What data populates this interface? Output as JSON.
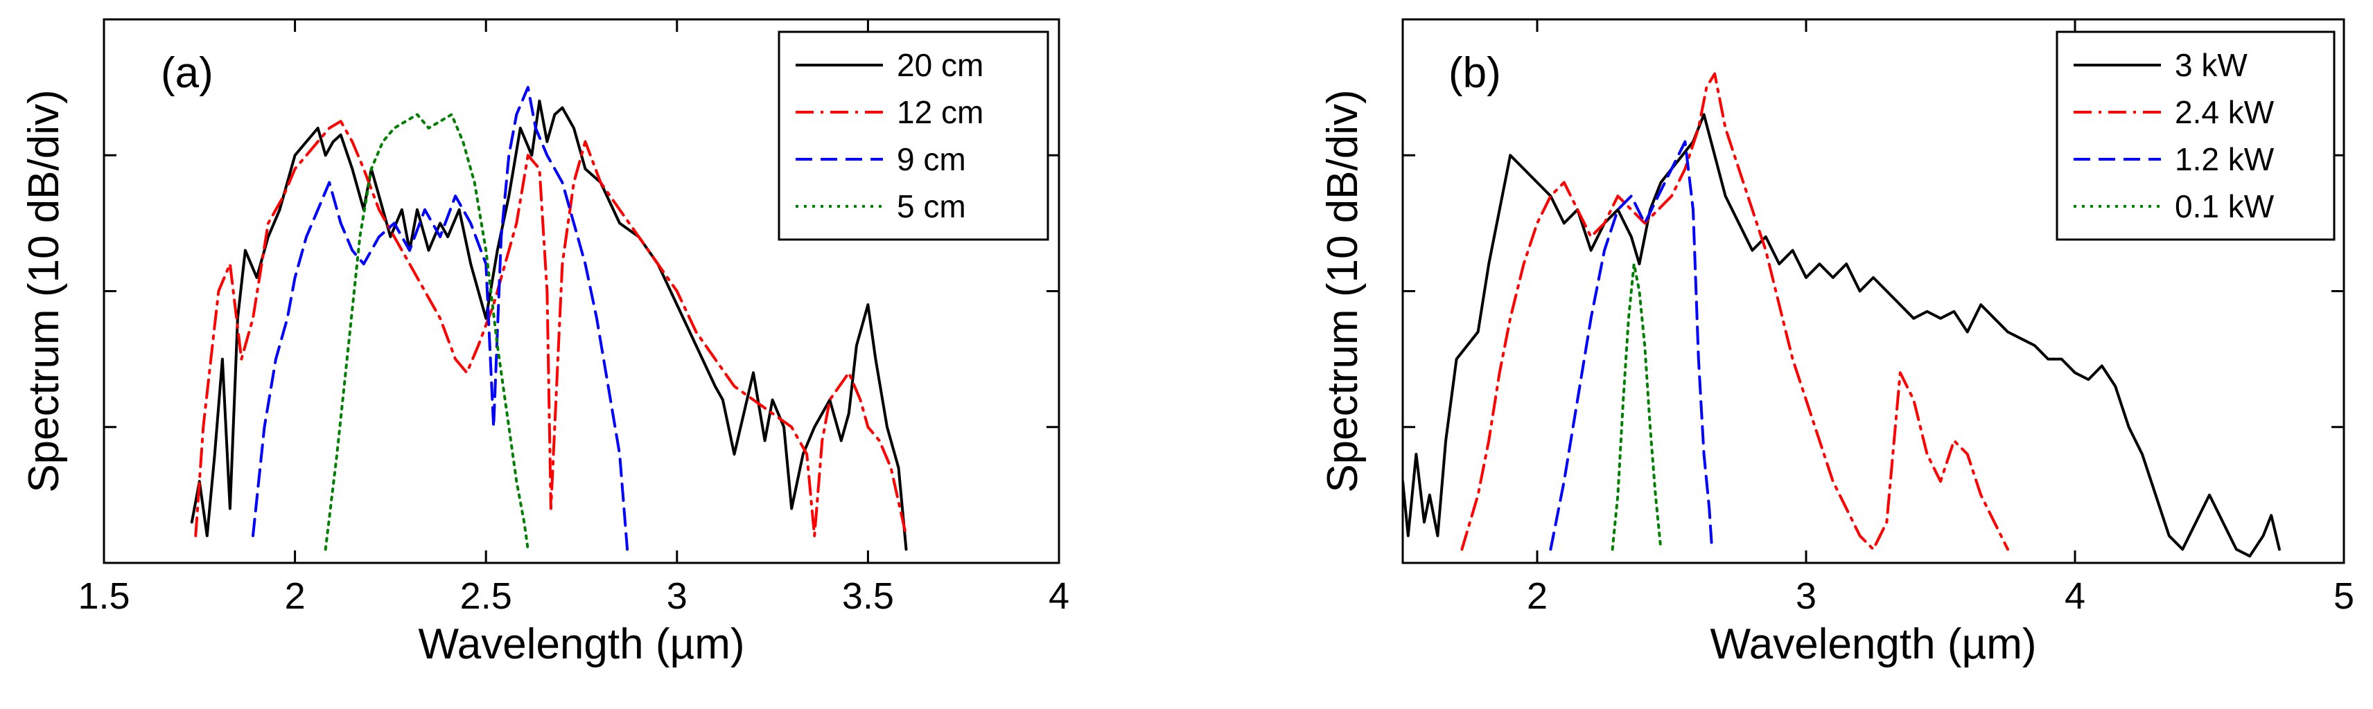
{
  "chart_data": [
    {
      "type": "line",
      "panel_label": "(a)",
      "xlabel": "Wavelength (µm)",
      "ylabel": "Spectrum (10 dB/div)",
      "xlim": [
        1.5,
        4
      ],
      "ylim": [
        0,
        4
      ],
      "xticks": [
        1.5,
        2,
        2.5,
        3,
        3.5,
        4
      ],
      "xtick_labels": [
        "1.5",
        "2",
        "2.5",
        "3",
        "3.5",
        "4"
      ],
      "yticks": [
        1,
        2,
        3
      ],
      "ytick_labels": [
        "",
        "",
        ""
      ],
      "grid": false,
      "legend_position": "top-right",
      "series": [
        {
          "name": "20 cm",
          "color": "#000000",
          "style": "solid",
          "x": [
            1.73,
            1.75,
            1.77,
            1.79,
            1.81,
            1.83,
            1.85,
            1.87,
            1.9,
            1.93,
            1.96,
            2.0,
            2.03,
            2.06,
            2.08,
            2.1,
            2.12,
            2.15,
            2.18,
            2.2,
            2.22,
            2.25,
            2.28,
            2.3,
            2.32,
            2.35,
            2.38,
            2.4,
            2.43,
            2.46,
            2.5,
            2.53,
            2.56,
            2.59,
            2.62,
            2.64,
            2.66,
            2.68,
            2.7,
            2.73,
            2.76,
            2.8,
            2.85,
            2.9,
            2.95,
            3.0,
            3.05,
            3.1,
            3.12,
            3.15,
            3.2,
            3.23,
            3.25,
            3.28,
            3.3,
            3.33,
            3.36,
            3.4,
            3.43,
            3.45,
            3.47,
            3.5,
            3.52,
            3.55,
            3.58,
            3.6
          ],
          "y": [
            0.3,
            0.6,
            0.2,
            0.8,
            1.5,
            0.4,
            1.8,
            2.3,
            2.1,
            2.4,
            2.6,
            3.0,
            3.1,
            3.2,
            3.0,
            3.1,
            3.15,
            2.9,
            2.6,
            2.9,
            2.7,
            2.4,
            2.6,
            2.3,
            2.6,
            2.3,
            2.5,
            2.4,
            2.6,
            2.2,
            1.8,
            2.3,
            2.7,
            3.2,
            3.0,
            3.4,
            3.1,
            3.3,
            3.35,
            3.2,
            2.9,
            2.8,
            2.5,
            2.4,
            2.2,
            1.9,
            1.6,
            1.3,
            1.2,
            0.8,
            1.4,
            0.9,
            1.2,
            1.0,
            0.4,
            0.8,
            1.0,
            1.2,
            0.9,
            1.1,
            1.6,
            1.9,
            1.5,
            1.0,
            0.7,
            0.1
          ]
        },
        {
          "name": "12 cm",
          "color": "#ff0000",
          "style": "dash-dot",
          "x": [
            1.74,
            1.76,
            1.78,
            1.8,
            1.83,
            1.86,
            1.89,
            1.93,
            1.97,
            2.0,
            2.03,
            2.06,
            2.09,
            2.12,
            2.15,
            2.18,
            2.22,
            2.26,
            2.3,
            2.34,
            2.38,
            2.42,
            2.45,
            2.48,
            2.52,
            2.55,
            2.58,
            2.61,
            2.64,
            2.66,
            2.67,
            2.7,
            2.73,
            2.76,
            2.8,
            2.85,
            2.9,
            2.95,
            3.0,
            3.05,
            3.1,
            3.15,
            3.2,
            3.25,
            3.3,
            3.34,
            3.36,
            3.38,
            3.4,
            3.45,
            3.48,
            3.5,
            3.53,
            3.56,
            3.6
          ],
          "y": [
            0.2,
            1.0,
            1.5,
            2.0,
            2.2,
            1.5,
            1.8,
            2.5,
            2.7,
            2.9,
            3.0,
            3.1,
            3.2,
            3.25,
            3.1,
            2.9,
            2.6,
            2.4,
            2.2,
            2.0,
            1.8,
            1.5,
            1.4,
            1.6,
            1.9,
            2.2,
            2.5,
            3.0,
            2.9,
            2.0,
            0.4,
            2.2,
            2.8,
            3.1,
            2.8,
            2.6,
            2.4,
            2.2,
            2.0,
            1.7,
            1.5,
            1.3,
            1.2,
            1.1,
            1.0,
            0.8,
            0.2,
            0.9,
            1.2,
            1.4,
            1.2,
            1.0,
            0.9,
            0.7,
            0.2
          ]
        },
        {
          "name": "9 cm",
          "color": "#0000ff",
          "style": "dashed",
          "x": [
            1.89,
            1.92,
            1.95,
            1.98,
            2.0,
            2.03,
            2.06,
            2.09,
            2.12,
            2.15,
            2.18,
            2.22,
            2.26,
            2.3,
            2.34,
            2.38,
            2.42,
            2.46,
            2.5,
            2.52,
            2.54,
            2.56,
            2.58,
            2.61,
            2.63,
            2.66,
            2.7,
            2.73,
            2.76,
            2.79,
            2.82,
            2.85,
            2.87
          ],
          "y": [
            0.2,
            1.0,
            1.5,
            1.8,
            2.1,
            2.4,
            2.6,
            2.8,
            2.5,
            2.3,
            2.2,
            2.4,
            2.5,
            2.3,
            2.6,
            2.4,
            2.7,
            2.5,
            2.2,
            1.0,
            2.4,
            3.0,
            3.3,
            3.5,
            3.2,
            3.0,
            2.8,
            2.5,
            2.2,
            1.8,
            1.3,
            0.8,
            0.1
          ]
        },
        {
          "name": "5 cm",
          "color": "#008000",
          "style": "dotted",
          "x": [
            2.08,
            2.11,
            2.14,
            2.17,
            2.2,
            2.23,
            2.26,
            2.29,
            2.32,
            2.35,
            2.38,
            2.41,
            2.44,
            2.47,
            2.5,
            2.53,
            2.56,
            2.58,
            2.6,
            2.61
          ],
          "y": [
            0.1,
            0.8,
            1.6,
            2.4,
            2.9,
            3.1,
            3.2,
            3.25,
            3.3,
            3.2,
            3.25,
            3.3,
            3.1,
            2.8,
            2.3,
            1.6,
            1.0,
            0.6,
            0.3,
            0.1
          ]
        }
      ]
    },
    {
      "type": "line",
      "panel_label": "(b)",
      "xlabel": "Wavelength (µm)",
      "ylabel": "Spectrum (10 dB/div)",
      "xlim": [
        1.5,
        5
      ],
      "ylim": [
        0,
        4
      ],
      "xticks": [
        2,
        3,
        4,
        5
      ],
      "xtick_labels": [
        "2",
        "3",
        "4",
        "5"
      ],
      "yticks": [
        1,
        2,
        3
      ],
      "ytick_labels": [
        "",
        "",
        ""
      ],
      "grid": false,
      "legend_position": "top-right",
      "series": [
        {
          "name": "3 kW",
          "color": "#000000",
          "style": "solid",
          "x": [
            1.5,
            1.52,
            1.55,
            1.58,
            1.6,
            1.63,
            1.66,
            1.7,
            1.74,
            1.78,
            1.82,
            1.86,
            1.9,
            1.95,
            2.0,
            2.05,
            2.1,
            2.15,
            2.2,
            2.25,
            2.3,
            2.35,
            2.38,
            2.42,
            2.46,
            2.5,
            2.54,
            2.58,
            2.62,
            2.66,
            2.7,
            2.75,
            2.8,
            2.85,
            2.9,
            2.95,
            3.0,
            3.05,
            3.1,
            3.15,
            3.2,
            3.25,
            3.3,
            3.35,
            3.4,
            3.45,
            3.5,
            3.55,
            3.6,
            3.65,
            3.7,
            3.75,
            3.8,
            3.85,
            3.9,
            3.95,
            4.0,
            4.05,
            4.1,
            4.15,
            4.2,
            4.25,
            4.3,
            4.35,
            4.4,
            4.45,
            4.5,
            4.55,
            4.6,
            4.65,
            4.7,
            4.73,
            4.76
          ],
          "y": [
            0.6,
            0.2,
            0.8,
            0.3,
            0.5,
            0.2,
            0.9,
            1.5,
            1.6,
            1.7,
            2.2,
            2.6,
            3.0,
            2.9,
            2.8,
            2.7,
            2.5,
            2.6,
            2.3,
            2.5,
            2.6,
            2.4,
            2.2,
            2.6,
            2.8,
            2.9,
            3.0,
            3.1,
            3.3,
            3.0,
            2.7,
            2.5,
            2.3,
            2.4,
            2.2,
            2.3,
            2.1,
            2.2,
            2.1,
            2.2,
            2.0,
            2.1,
            2.0,
            1.9,
            1.8,
            1.85,
            1.8,
            1.85,
            1.7,
            1.9,
            1.8,
            1.7,
            1.65,
            1.6,
            1.5,
            1.5,
            1.4,
            1.35,
            1.45,
            1.3,
            1.0,
            0.8,
            0.5,
            0.2,
            0.1,
            0.3,
            0.5,
            0.3,
            0.1,
            0.05,
            0.2,
            0.35,
            0.1
          ]
        },
        {
          "name": "2.4 kW",
          "color": "#ff0000",
          "style": "dash-dot",
          "x": [
            1.72,
            1.75,
            1.78,
            1.82,
            1.86,
            1.9,
            1.95,
            2.0,
            2.05,
            2.1,
            2.15,
            2.2,
            2.25,
            2.3,
            2.35,
            2.4,
            2.45,
            2.5,
            2.55,
            2.6,
            2.63,
            2.66,
            2.7,
            2.75,
            2.8,
            2.85,
            2.9,
            2.95,
            3.0,
            3.05,
            3.1,
            3.15,
            3.2,
            3.25,
            3.3,
            3.35,
            3.4,
            3.45,
            3.5,
            3.55,
            3.6,
            3.65,
            3.7,
            3.75
          ],
          "y": [
            0.1,
            0.3,
            0.5,
            0.9,
            1.4,
            1.8,
            2.2,
            2.5,
            2.7,
            2.8,
            2.6,
            2.4,
            2.5,
            2.7,
            2.6,
            2.5,
            2.6,
            2.7,
            2.9,
            3.2,
            3.5,
            3.6,
            3.2,
            2.9,
            2.6,
            2.3,
            1.9,
            1.5,
            1.2,
            0.9,
            0.6,
            0.4,
            0.2,
            0.1,
            0.3,
            1.4,
            1.2,
            0.8,
            0.6,
            0.9,
            0.8,
            0.5,
            0.3,
            0.1
          ]
        },
        {
          "name": "1.2 kW",
          "color": "#0000ff",
          "style": "dashed",
          "x": [
            2.05,
            2.1,
            2.15,
            2.2,
            2.25,
            2.3,
            2.35,
            2.4,
            2.45,
            2.5,
            2.55,
            2.58,
            2.6,
            2.62,
            2.64,
            2.65
          ],
          "y": [
            0.1,
            0.6,
            1.2,
            1.8,
            2.3,
            2.6,
            2.7,
            2.5,
            2.7,
            2.9,
            3.1,
            2.6,
            1.5,
            0.8,
            0.4,
            0.1
          ]
        },
        {
          "name": "0.1 kW",
          "color": "#008000",
          "style": "dotted",
          "x": [
            2.28,
            2.3,
            2.32,
            2.34,
            2.36,
            2.38,
            2.4,
            2.42,
            2.44,
            2.46
          ],
          "y": [
            0.1,
            0.5,
            1.2,
            1.8,
            2.2,
            2.0,
            1.6,
            1.0,
            0.5,
            0.1
          ]
        }
      ]
    }
  ]
}
